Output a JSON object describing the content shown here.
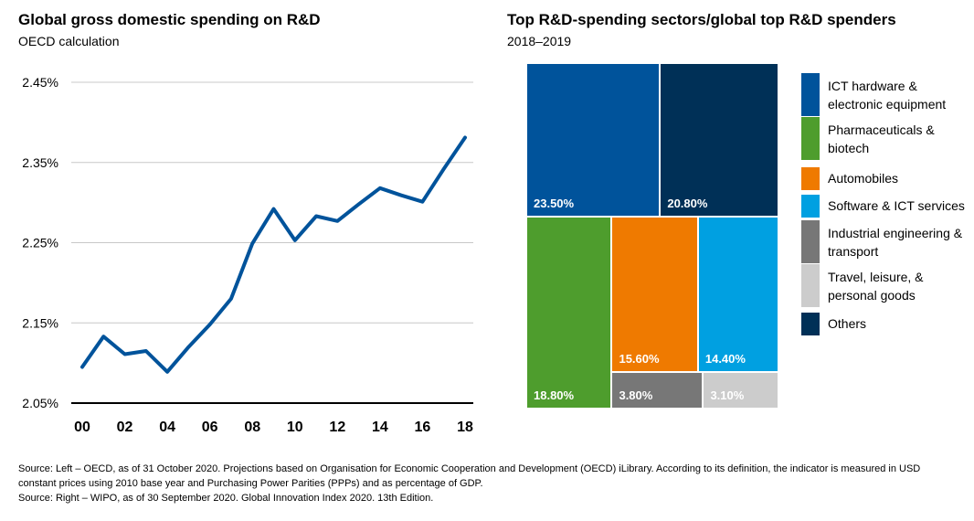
{
  "left": {
    "title": "Global gross domestic spending on R&D",
    "subtitle": "OECD calculation"
  },
  "right": {
    "title": "Top R&D-spending sectors/global top R&D spenders",
    "subtitle": "2018–2019"
  },
  "colors": {
    "line": "#00539b",
    "ict_hardware": "#00539b",
    "pharma": "#4e9d2d",
    "automobiles": "#ef7a00",
    "software": "#00a0e1",
    "industrial": "#777777",
    "travel": "#cccccc",
    "others": "#003057"
  },
  "chart_data": [
    {
      "type": "line",
      "title": "Global gross domestic spending on R&D",
      "subtitle": "OECD calculation",
      "x": [
        0,
        1,
        2,
        3,
        4,
        5,
        6,
        7,
        8,
        9,
        10,
        11,
        12,
        13,
        14,
        15,
        16,
        17,
        18
      ],
      "x_tick_labels": [
        "00",
        "02",
        "04",
        "06",
        "08",
        "10",
        "12",
        "14",
        "16",
        "18"
      ],
      "x_tick_values": [
        0,
        2,
        4,
        6,
        8,
        10,
        12,
        14,
        16,
        18
      ],
      "y": [
        2.095,
        2.133,
        2.111,
        2.115,
        2.089,
        2.12,
        2.148,
        2.18,
        2.249,
        2.292,
        2.253,
        2.283,
        2.277,
        2.298,
        2.318,
        2.309,
        2.301,
        2.342,
        2.381
      ],
      "y_tick_labels": [
        "2.05%",
        "2.15%",
        "2.25%",
        "2.35%",
        "2.45%"
      ],
      "y_tick_values": [
        2.05,
        2.15,
        2.25,
        2.35,
        2.45
      ],
      "ylim": [
        2.05,
        2.45
      ],
      "grid": true
    },
    {
      "type": "treemap",
      "title": "Top R&D-spending sectors/global top R&D spenders",
      "subtitle": "2018–2019",
      "legend_placement": "right",
      "series": [
        {
          "name": "ICT hardware & electronic equipment",
          "label": "23.50%",
          "value": 23.5,
          "color": "#00539b"
        },
        {
          "name": "Others",
          "label": "20.80%",
          "value": 20.8,
          "color": "#003057"
        },
        {
          "name": "Pharmaceuticals & biotech",
          "label": "18.80%",
          "value": 18.8,
          "color": "#4e9d2d"
        },
        {
          "name": "Automobiles",
          "label": "15.60%",
          "value": 15.6,
          "color": "#ef7a00"
        },
        {
          "name": "Software & ICT services",
          "label": "14.40%",
          "value": 14.4,
          "color": "#00a0e1"
        },
        {
          "name": "Industrial engineering & transport",
          "label": "3.80%",
          "value": 3.8,
          "color": "#777777"
        },
        {
          "name": "Travel, leisure, & personal goods",
          "label": "3.10%",
          "value": 3.1,
          "color": "#cccccc"
        }
      ]
    }
  ],
  "legend": [
    {
      "label": "ICT hardware & electronic equipment",
      "color": "#00539b"
    },
    {
      "label": "Pharmaceuticals & biotech",
      "color": "#4e9d2d"
    },
    {
      "label": "Automobiles",
      "color": "#ef7a00"
    },
    {
      "label": "Software & ICT services",
      "color": "#00a0e1"
    },
    {
      "label": "Industrial engineering & transport",
      "color": "#777777"
    },
    {
      "label": "Travel, leisure, & personal goods",
      "color": "#cccccc"
    },
    {
      "label": "Others",
      "color": "#003057"
    }
  ],
  "source": {
    "line1": "Source: Left – OECD, as of 31 October 2020. Projections based on Organisation for Economic Cooperation and Development (OECD) iLibrary. According to its definition, the indicator is measured in USD constant prices using 2010 base year and Purchasing Power Parities (PPPs) and as percentage of GDP.",
    "line2": "Source: Right – WIPO, as of 30 September 2020. Global Innovation Index 2020. 13th Edition."
  }
}
